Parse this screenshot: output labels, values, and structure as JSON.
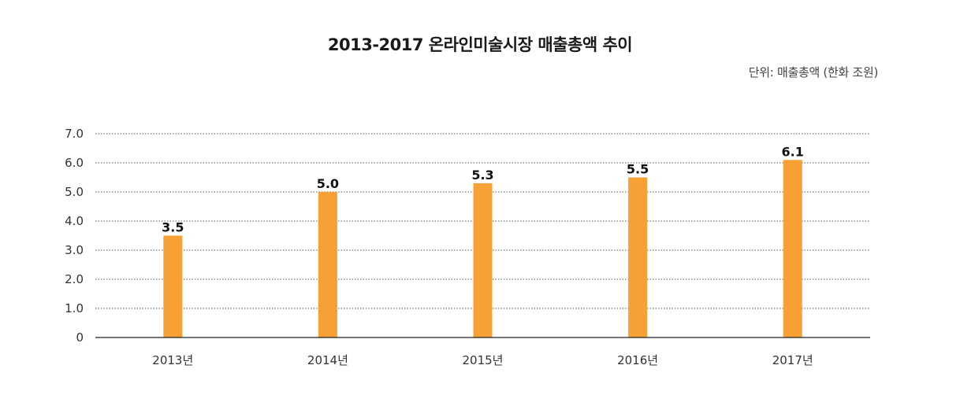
{
  "chart_data": {
    "type": "bar",
    "title": "2013-2017 온라인미술시장 매출총액 추이",
    "unit": "단위: 매출총액 (한화 조원)",
    "categories": [
      "2013년",
      "2014년",
      "2015년",
      "2016년",
      "2017년"
    ],
    "values": [
      3.5,
      5.0,
      5.3,
      5.5,
      6.1
    ],
    "data_labels": [
      "3.5",
      "5.0",
      "5.3",
      "5.5",
      "6.1"
    ],
    "y_ticks": [
      "0",
      "1.0",
      "2.0",
      "3.0",
      "4.0",
      "5.0",
      "6.0",
      "7.0"
    ],
    "ylim": [
      0,
      7
    ],
    "grid": "horizontal dotted",
    "xlabel": "",
    "ylabel": "",
    "bar_color": "#f7a036"
  }
}
